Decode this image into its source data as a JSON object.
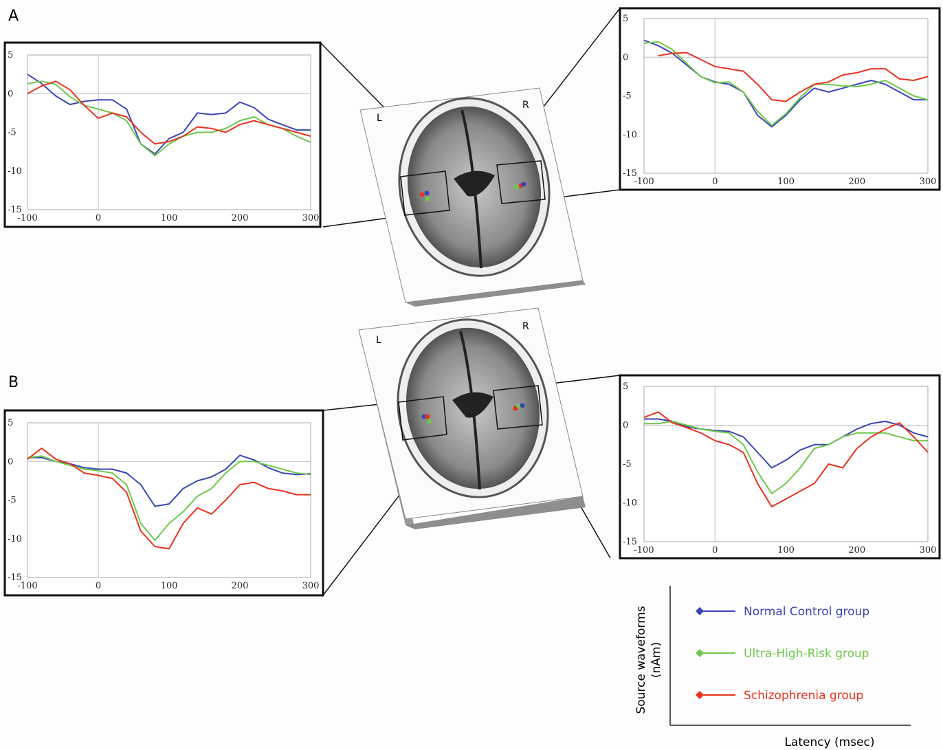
{
  "panels": [
    "A",
    "B"
  ],
  "brains": [
    {
      "left": "L",
      "right": "R"
    },
    {
      "left": "L",
      "right": "R"
    }
  ],
  "legend": {
    "y_label": [
      "Source waveforms",
      "(nAm)"
    ],
    "x_label": "Latency (msec)"
  },
  "chart_data": [
    {
      "type": "line",
      "zero_lines": true,
      "xlim": [
        -100,
        300
      ],
      "ylim": [
        -15,
        5
      ],
      "xticks": [
        -100,
        0,
        100,
        200,
        300
      ],
      "yticks": [
        -15,
        -10,
        -5,
        0,
        5
      ],
      "x": [
        -100,
        -80,
        -60,
        -40,
        -20,
        0,
        20,
        40,
        60,
        80,
        100,
        120,
        140,
        160,
        180,
        200,
        220,
        240,
        260,
        280,
        300
      ],
      "series": [
        {
          "name": "Normal Control group",
          "color": "#3a45b5",
          "values": [
            2.5,
            1.3,
            -0.3,
            -1.4,
            -1.0,
            -0.8,
            -0.8,
            -2,
            -6.5,
            -7.8,
            -5.8,
            -5,
            -2.5,
            -2.7,
            -2.5,
            -1.1,
            -1.8,
            -3.3,
            -4,
            -4.7,
            -4.7
          ]
        },
        {
          "name": "Ultra-High-Risk group",
          "color": "#6cc94a",
          "values": [
            1.3,
            1.6,
            1.2,
            -0.4,
            -1.5,
            -2.0,
            -2.5,
            -3.5,
            -6.5,
            -8.0,
            -6.5,
            -5.5,
            -5,
            -5,
            -4.5,
            -3.5,
            -3,
            -4,
            -4.5,
            -5.5,
            -6.3
          ]
        },
        {
          "name": "Schizophrenia group",
          "color": "#e8321e",
          "values": [
            0,
            1.0,
            1.6,
            0.5,
            -1.5,
            -3.2,
            -2.5,
            -3.0,
            -5.0,
            -6.5,
            -6.2,
            -5.5,
            -4.3,
            -4.5,
            -5,
            -4,
            -3.5,
            -4,
            -4.5,
            -5,
            -5.5
          ]
        }
      ]
    },
    {
      "type": "line",
      "zero_lines": true,
      "xlim": [
        -100,
        300
      ],
      "ylim": [
        -15,
        5
      ],
      "xticks": [
        -100,
        0,
        100,
        200,
        300
      ],
      "yticks": [
        -15,
        -10,
        -5,
        0,
        5
      ],
      "x": [
        -100,
        -80,
        -60,
        -40,
        -20,
        0,
        20,
        40,
        60,
        80,
        100,
        120,
        140,
        160,
        180,
        200,
        220,
        240,
        260,
        280,
        300
      ],
      "series": [
        {
          "name": "Normal Control group",
          "color": "#3a45b5",
          "values": [
            2.2,
            1.5,
            0.5,
            -1,
            -2.5,
            -3.2,
            -3.5,
            -4.5,
            -7.5,
            -9,
            -7.5,
            -5.5,
            -4,
            -4.5,
            -4,
            -3.5,
            -3,
            -3.5,
            -4.5,
            -5.5,
            -5.5
          ]
        },
        {
          "name": "Ultra-High-Risk group",
          "color": "#6cc94a",
          "values": [
            1.8,
            2.0,
            1.0,
            -0.8,
            -2.5,
            -3.3,
            -3.2,
            -4.5,
            -7,
            -8.8,
            -7.3,
            -5.2,
            -3.5,
            -3.5,
            -3.7,
            -3.8,
            -3.5,
            -3.0,
            -4.0,
            -5,
            -5.5
          ]
        },
        {
          "name": "Schizophrenia group",
          "color": "#e8321e",
          "values": [
            null,
            0.2,
            0.5,
            0.6,
            -0.3,
            -1.2,
            -1.5,
            -1.8,
            -3.5,
            -5.5,
            -5.7,
            -4.5,
            -3.5,
            -3.2,
            -2.3,
            -2,
            -1.5,
            -1.5,
            -2.8,
            -3,
            -2.5
          ]
        }
      ]
    },
    {
      "type": "line",
      "zero_lines": true,
      "xlim": [
        -100,
        300
      ],
      "ylim": [
        -15,
        5
      ],
      "xticks": [
        -100,
        0,
        100,
        200,
        300
      ],
      "yticks": [
        -15,
        -10,
        -5,
        0,
        5
      ],
      "x": [
        -100,
        -80,
        -60,
        -40,
        -20,
        0,
        20,
        40,
        60,
        80,
        100,
        120,
        140,
        160,
        180,
        200,
        220,
        240,
        260,
        280,
        300
      ],
      "series": [
        {
          "name": "Normal Control group",
          "color": "#3a45b5",
          "values": [
            0.5,
            0.5,
            0,
            -0.3,
            -0.8,
            -1,
            -1,
            -1.5,
            -3,
            -5.8,
            -5.5,
            -3.5,
            -2.5,
            -2,
            -1,
            0.8,
            0.2,
            -0.8,
            -1.5,
            -1.7,
            -1.6
          ]
        },
        {
          "name": "Ultra-High-Risk group",
          "color": "#6cc94a",
          "values": [
            0.5,
            0.7,
            0,
            -0.5,
            -1,
            -1.2,
            -1.5,
            -3,
            -8,
            -10.2,
            -8,
            -6.5,
            -4.5,
            -3.5,
            -1.5,
            0,
            0,
            -0.5,
            -1,
            -1.5,
            -1.7
          ]
        },
        {
          "name": "Schizophrenia group",
          "color": "#e8321e",
          "values": [
            0.3,
            1.7,
            0.3,
            -0.3,
            -1.5,
            -1.8,
            -2.2,
            -4,
            -9,
            -11,
            -11.3,
            -8,
            -6,
            -6.8,
            -5,
            -3,
            -2.7,
            -3.5,
            -3.8,
            -4.3,
            -4.3
          ]
        }
      ]
    },
    {
      "type": "line",
      "zero_lines": true,
      "xlim": [
        -100,
        300
      ],
      "ylim": [
        -15,
        5
      ],
      "xticks": [
        -100,
        0,
        100,
        200,
        300
      ],
      "yticks": [
        -15,
        -10,
        -5,
        0,
        5
      ],
      "x": [
        -100,
        -80,
        -60,
        -40,
        -20,
        0,
        20,
        40,
        60,
        80,
        100,
        120,
        140,
        160,
        180,
        200,
        220,
        240,
        260,
        280,
        300
      ],
      "series": [
        {
          "name": "Normal Control group",
          "color": "#3a45b5",
          "values": [
            0.8,
            0.8,
            0.5,
            -0.2,
            -0.5,
            -0.7,
            -0.8,
            -1.5,
            -3.5,
            -5.5,
            -4.5,
            -3.2,
            -2.5,
            -2.5,
            -1.5,
            -0.5,
            0.2,
            0.5,
            0,
            -1,
            -1.5
          ]
        },
        {
          "name": "Ultra-High-Risk group",
          "color": "#6cc94a",
          "values": [
            0.2,
            0.2,
            0.5,
            0,
            -0.5,
            -0.8,
            -1,
            -2.5,
            -6,
            -8.8,
            -7.5,
            -5.5,
            -3,
            -2.5,
            -1.5,
            -1,
            -1,
            -1,
            -1.5,
            -2,
            -2
          ]
        },
        {
          "name": "Schizophrenia group",
          "color": "#e8321e",
          "values": [
            1.0,
            1.7,
            0.3,
            -0.3,
            -1,
            -2.0,
            -2.5,
            -3.5,
            -7.5,
            -10.5,
            -9.5,
            -8.5,
            -7.5,
            -5.0,
            -5.5,
            -3,
            -1.5,
            -0.5,
            0.3,
            -1.5,
            -3.5
          ]
        }
      ]
    }
  ]
}
